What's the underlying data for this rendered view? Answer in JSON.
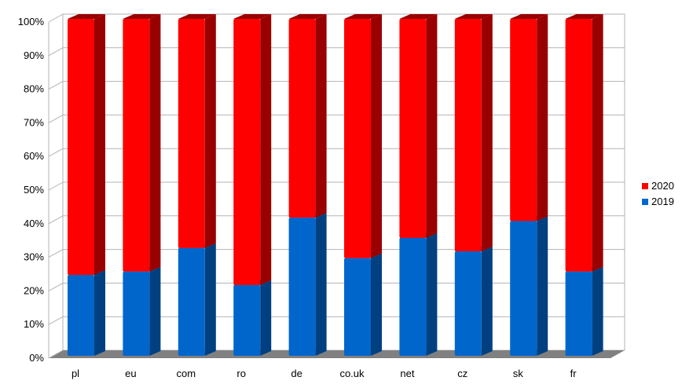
{
  "chart_data": {
    "type": "bar",
    "stacked": true,
    "percent": true,
    "categories": [
      "pl",
      "eu",
      "com",
      "ro",
      "de",
      "co.uk",
      "net",
      "cz",
      "sk",
      "fr"
    ],
    "series": [
      {
        "name": "2019",
        "color": "#0066cc",
        "side": "#004080",
        "values": [
          24,
          25,
          32,
          21,
          41,
          29,
          35,
          31,
          40,
          25
        ]
      },
      {
        "name": "2020",
        "color": "#ff0000",
        "side": "#990000",
        "values": [
          76,
          75,
          68,
          79,
          59,
          71,
          65,
          69,
          60,
          75
        ]
      }
    ],
    "ylim": [
      0,
      100
    ],
    "yticks": [
      "0%",
      "10%",
      "20%",
      "30%",
      "40%",
      "50%",
      "60%",
      "70%",
      "80%",
      "90%",
      "100%"
    ],
    "legend": {
      "position": "right",
      "order": [
        "2020",
        "2019"
      ]
    },
    "grid": true
  }
}
